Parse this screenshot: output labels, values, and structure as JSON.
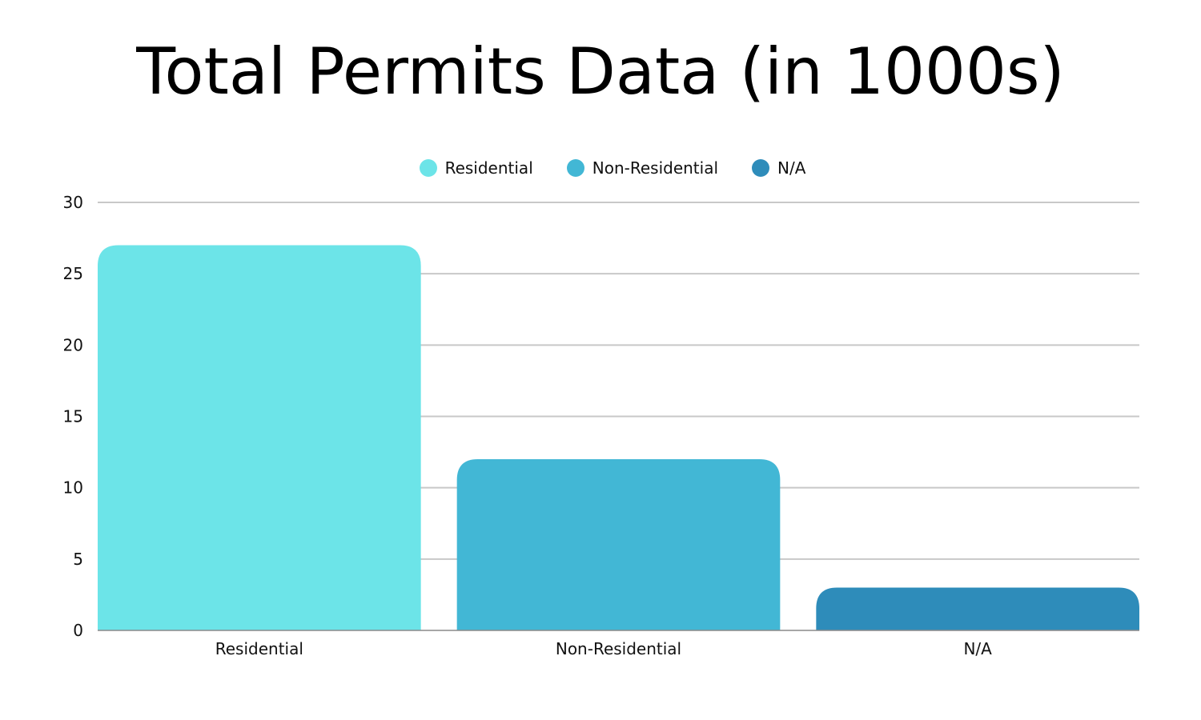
{
  "chart_data": {
    "type": "bar",
    "title": "Total Permits Data (in 1000s)",
    "categories": [
      "Residential",
      "Non-Residential",
      "N/A"
    ],
    "values": [
      27,
      12,
      3
    ],
    "colors": [
      "#6ce4e8",
      "#42b7d5",
      "#2e8cba"
    ],
    "xlabel": "",
    "ylabel": "",
    "ylim": [
      0,
      30
    ],
    "yticks": [
      0,
      5,
      10,
      15,
      20,
      25,
      30
    ],
    "grid": true,
    "legend": {
      "placement": "top-center",
      "entries": [
        "Residential",
        "Non-Residential",
        "N/A"
      ]
    }
  }
}
